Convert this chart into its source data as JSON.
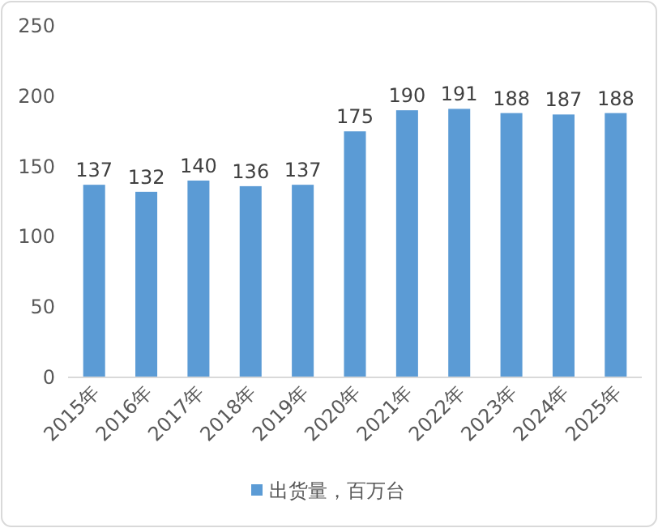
{
  "chart_data": {
    "type": "bar",
    "categories": [
      "2015年",
      "2016年",
      "2017年",
      "2018年",
      "2019年",
      "2020年",
      "2021年",
      "2022年",
      "2023年",
      "2024年",
      "2025年"
    ],
    "series": [
      {
        "name": "出货量，百万台",
        "color": "#5b9bd5",
        "values": [
          137,
          132,
          140,
          136,
          137,
          175,
          190,
          191,
          188,
          187,
          188
        ]
      }
    ],
    "ylim": [
      0,
      250
    ],
    "yticks": [
      0,
      50,
      100,
      150,
      200,
      250
    ],
    "data_labels": true,
    "legend": "bottom",
    "grid": false
  }
}
